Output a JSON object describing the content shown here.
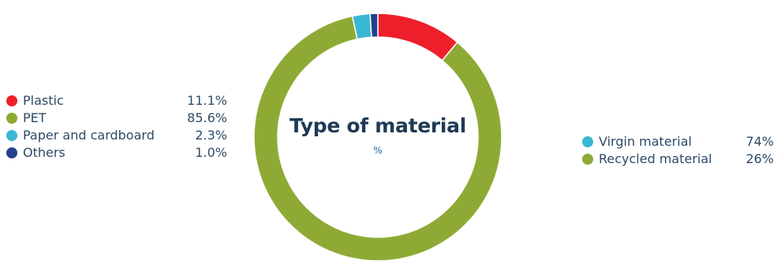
{
  "chart_data": [
    {
      "type": "pie",
      "title": "Type of material",
      "subtitle": "%",
      "donut": true,
      "categories": [
        "Plastic",
        "PET",
        "Paper and cardboard",
        "Others"
      ],
      "values": [
        11.1,
        85.6,
        2.3,
        1.0
      ],
      "value_labels": [
        "11.1%",
        "85.6%",
        "2.3%",
        "1.0%"
      ],
      "colors": [
        "#ee1f2b",
        "#8eaa35",
        "#3ab7d4",
        "#25408f"
      ],
      "legend": "left"
    },
    {
      "type": "pie",
      "categories": [
        "Virgin material",
        "Recycled material"
      ],
      "values": [
        74,
        26
      ],
      "value_labels": [
        "74%",
        "26%"
      ],
      "colors": [
        "#3ab7d4",
        "#8eaa35"
      ],
      "legend": "right",
      "note": ""
    }
  ]
}
